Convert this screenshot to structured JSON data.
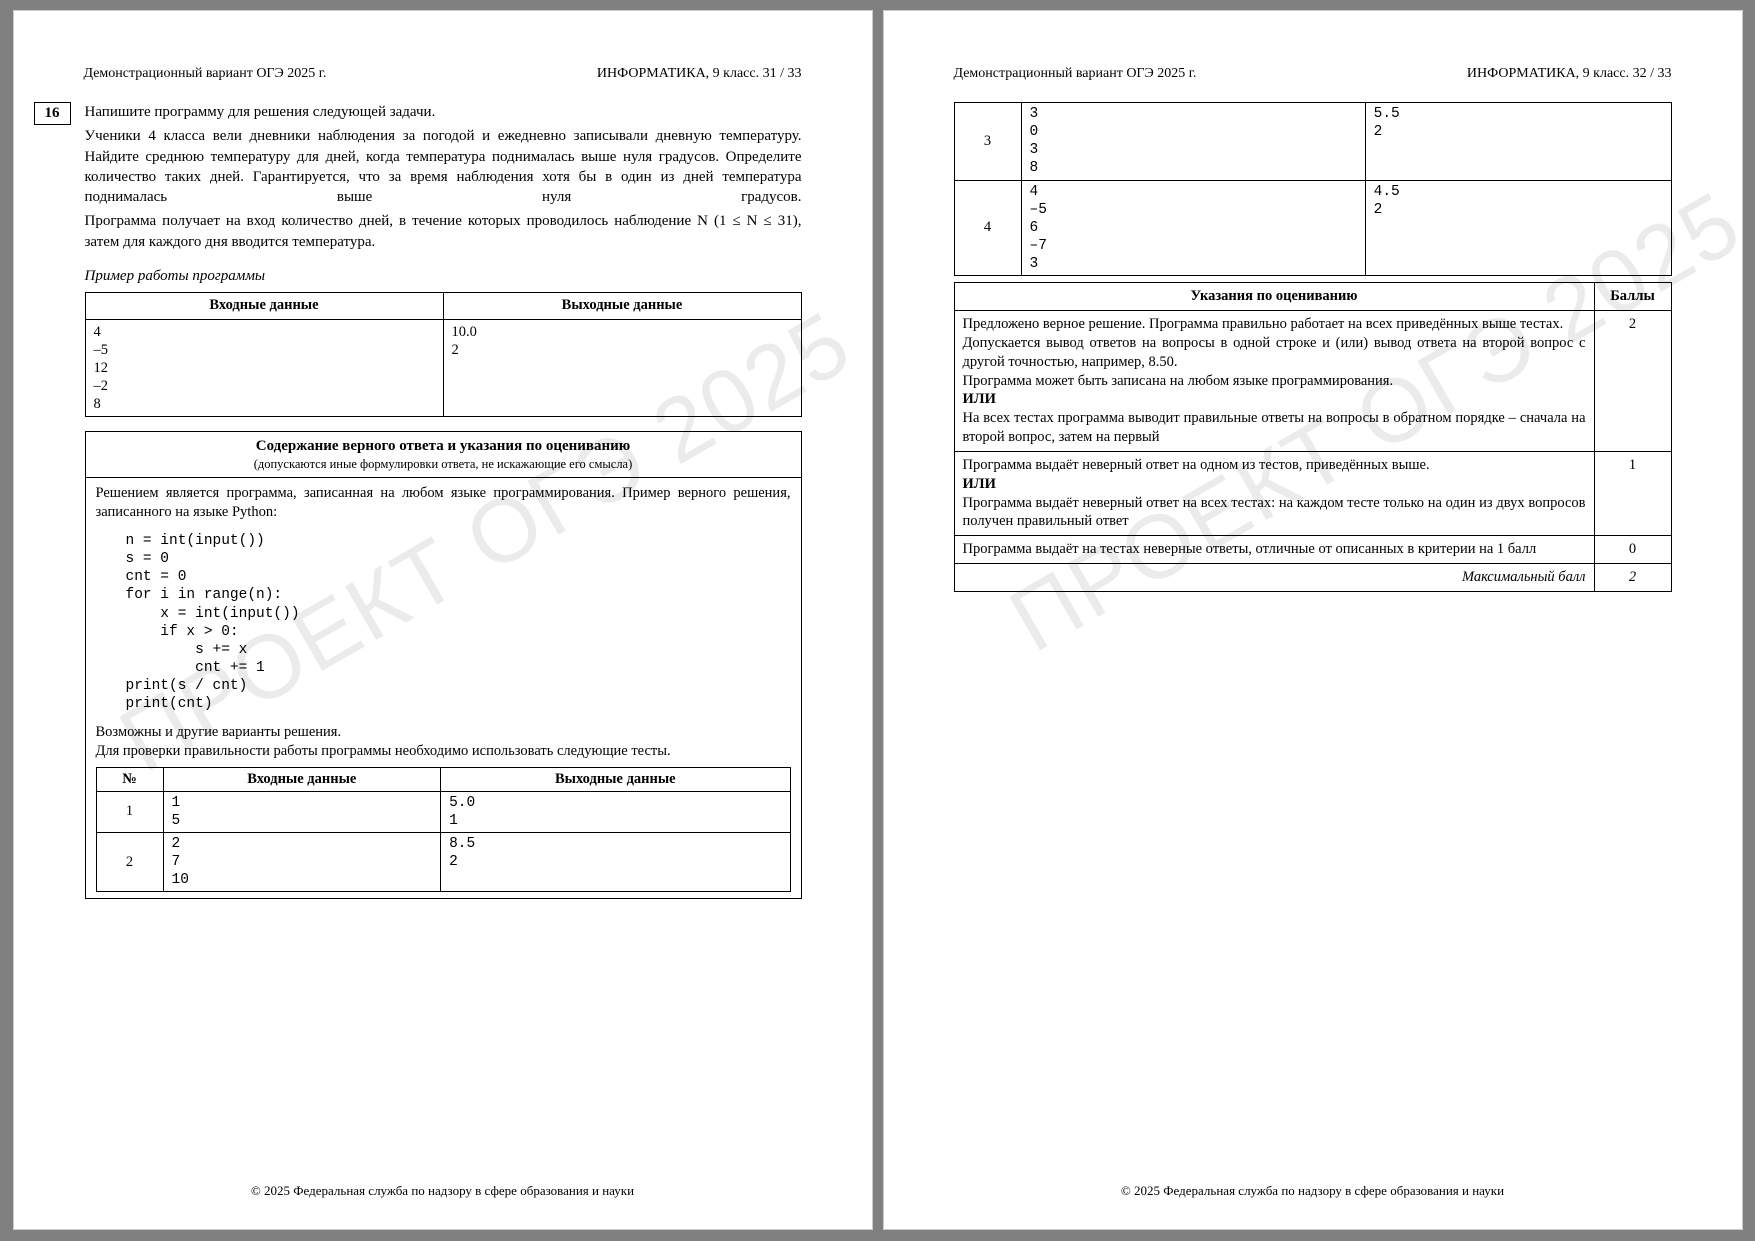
{
  "watermark": "ПРОЕКТ ОГЭ 2025",
  "footer": "© 2025 Федеральная служба по надзору в сфере образования и науки",
  "left": {
    "head_left": "Демонстрационный вариант ОГЭ 2025 г.",
    "head_right": "ИНФОРМАТИКА, 9 класс.    31 / 33",
    "task_num": "16",
    "para1": "Напишите программу для решения следующей задачи.",
    "para2": "Ученики 4 класса вели дневники наблюдения за погодой и ежедневно записывали дневную температуру. Найдите среднюю температуру для дней, когда температура поднималась выше нуля градусов. Определите количество таких дней. Гарантируется, что за время наблюдения хотя бы в один из дней температура поднималась выше нуля градусов.",
    "para3": "Программа получает на вход количество дней, в течение которых проводилось наблюдение N (1 ≤ N ≤ 31), затем для каждого дня вводится температура.",
    "example_caption": "Пример работы программы",
    "ex_head_in": "Входные данные",
    "ex_head_out": "Выходные данные",
    "ex_in": "4\n–5\n12\n–2\n8",
    "ex_out": "10.0\n2",
    "ab_head": "Содержание верного ответа и указания по оцениванию",
    "ab_sub": "(допускаются иные формулировки ответа, не искажающие его смысла)",
    "ab_intro": "Решением является программа, записанная на любом языке программирования. Пример верного решения, записанного на языке Python:",
    "code": "n = int(input())\ns = 0\ncnt = 0\nfor i in range(n):\n    x = int(input())\n    if x > 0:\n        s += x\n        cnt += 1\nprint(s / cnt)\nprint(cnt)",
    "ab_after1": "Возможны и другие варианты решения.",
    "ab_after2": "Для проверки правильности работы программы необходимо использовать следующие тесты.",
    "tests_head_n": "№",
    "tests_head_in": "Входные данные",
    "tests_head_out": "Выходные данные",
    "tests": [
      {
        "n": "1",
        "in": "1\n5",
        "out": "5.0\n1"
      },
      {
        "n": "2",
        "in": "2\n7\n10",
        "out": "8.5\n2"
      }
    ]
  },
  "right": {
    "head_left": "Демонстрационный вариант ОГЭ 2025 г.",
    "head_right": "ИНФОРМАТИКА, 9 класс.    32 / 33",
    "cont_tests": [
      {
        "n": "3",
        "in": "3\n0\n3\n8",
        "out": "5.5\n2"
      },
      {
        "n": "4",
        "in": "4\n–5\n6\n–7\n3",
        "out": "4.5\n2"
      }
    ],
    "rubric_head_l": "Указания по оцениванию",
    "rubric_head_r": "Баллы",
    "rows": [
      {
        "text": "Предложено верное решение. Программа правильно работает на всех приведённых выше тестах.\nДопускается вывод ответов на вопросы в одной строке и (или) вывод ответа на второй вопрос с другой точностью, например, 8.50.\nПрограмма может быть записана на любом языке программирования.\nИЛИ\nНа всех тестах программа выводит правильные ответы на вопросы в обратном порядке – сначала на второй вопрос, затем на первый",
        "score": "2"
      },
      {
        "text": "Программа выдаёт неверный ответ на одном из тестов, приведённых выше.\nИЛИ\nПрограмма выдаёт неверный ответ на всех тестах: на каждом тесте только на один из двух вопросов получен правильный ответ",
        "score": "1"
      },
      {
        "text": "Программа выдаёт на тестах неверные ответы, отличные от описанных в критерии на 1 балл",
        "score": "0"
      }
    ],
    "max_label": "Максимальный балл",
    "max_score": "2"
  }
}
